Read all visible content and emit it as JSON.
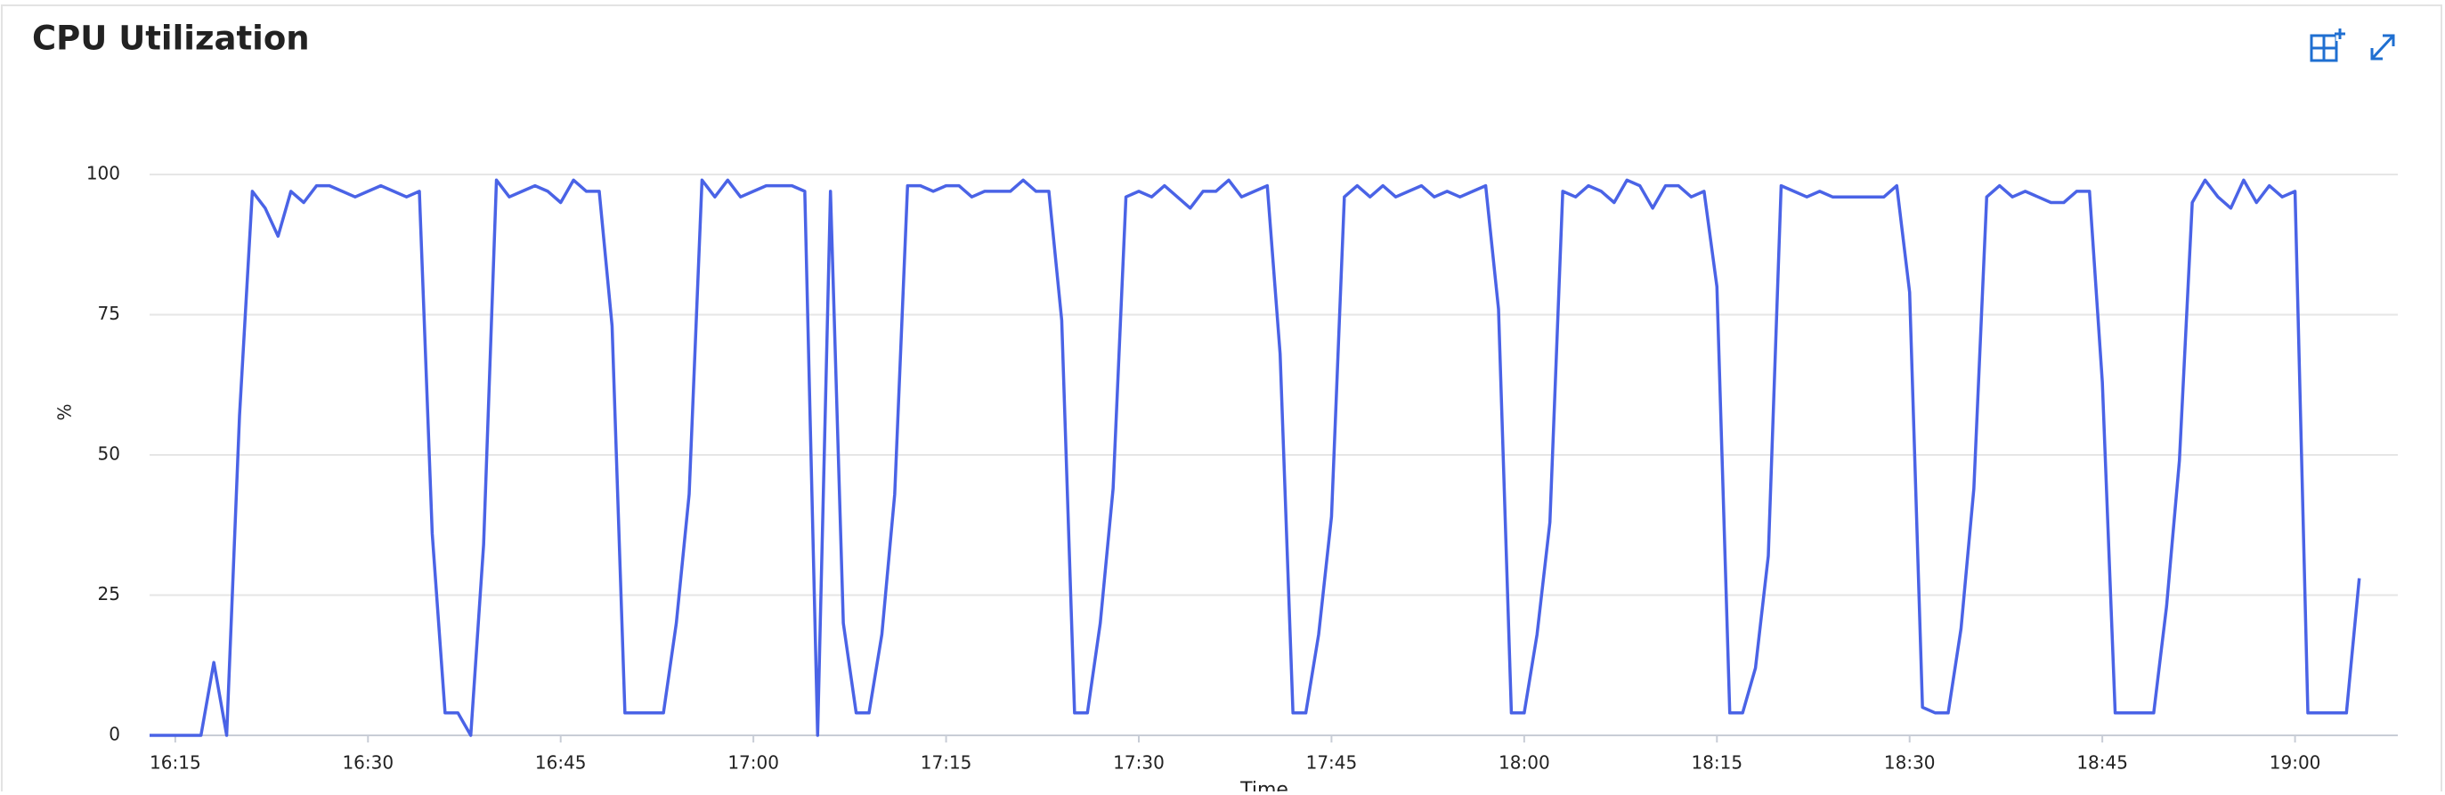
{
  "chart_data": {
    "type": "line",
    "title": "CPU Utilization",
    "x_label": "Time",
    "y_label": "%",
    "x": [
      "16:13",
      "16:14",
      "16:15",
      "16:16",
      "16:17",
      "16:18",
      "16:19",
      "16:20",
      "16:21",
      "16:22",
      "16:23",
      "16:24",
      "16:25",
      "16:26",
      "16:27",
      "16:28",
      "16:29",
      "16:30",
      "16:31",
      "16:32",
      "16:33",
      "16:34",
      "16:35",
      "16:36",
      "16:37",
      "16:38",
      "16:39",
      "16:40",
      "16:41",
      "16:42",
      "16:43",
      "16:44",
      "16:45",
      "16:46",
      "16:47",
      "16:48",
      "16:49",
      "16:50",
      "16:51",
      "16:52",
      "16:53",
      "16:54",
      "16:55",
      "16:56",
      "16:57",
      "16:58",
      "16:59",
      "17:00",
      "17:01",
      "17:02",
      "17:03",
      "17:04",
      "17:05",
      "17:06",
      "17:07",
      "17:08",
      "17:09",
      "17:10",
      "17:11",
      "17:12",
      "17:13",
      "17:14",
      "17:15",
      "17:16",
      "17:17",
      "17:18",
      "17:19",
      "17:20",
      "17:21",
      "17:22",
      "17:23",
      "17:24",
      "17:25",
      "17:26",
      "17:27",
      "17:28",
      "17:29",
      "17:30",
      "17:31",
      "17:32",
      "17:33",
      "17:34",
      "17:35",
      "17:36",
      "17:37",
      "17:38",
      "17:39",
      "17:40",
      "17:41",
      "17:42",
      "17:43",
      "17:44",
      "17:45",
      "17:46",
      "17:47",
      "17:48",
      "17:49",
      "17:50",
      "17:51",
      "17:52",
      "17:53",
      "17:54",
      "17:55",
      "17:56",
      "17:57",
      "17:58",
      "17:59",
      "18:00",
      "18:01",
      "18:02",
      "18:03",
      "18:04",
      "18:05",
      "18:06",
      "18:07",
      "18:08",
      "18:09",
      "18:10",
      "18:11",
      "18:12",
      "18:13",
      "18:14",
      "18:15",
      "18:16",
      "18:17",
      "18:18",
      "18:19",
      "18:20",
      "18:21",
      "18:22",
      "18:23",
      "18:24",
      "18:25",
      "18:26",
      "18:27",
      "18:28",
      "18:29",
      "18:30",
      "18:31",
      "18:32",
      "18:33",
      "18:34",
      "18:35",
      "18:36",
      "18:37",
      "18:38",
      "18:39",
      "18:40",
      "18:41",
      "18:42",
      "18:43",
      "18:44",
      "18:45",
      "18:46",
      "18:47",
      "18:48",
      "18:49",
      "18:50",
      "18:51",
      "18:52",
      "18:53",
      "18:54",
      "18:55",
      "18:56",
      "18:57",
      "18:58",
      "18:59",
      "19:00",
      "19:01",
      "19:02",
      "19:03",
      "19:04",
      "19:05"
    ],
    "series": [
      {
        "name": "CPU",
        "color": "#4a63e6",
        "values": [
          0,
          0,
          0,
          0,
          0,
          13,
          0,
          57,
          97,
          94,
          89,
          97,
          95,
          98,
          98,
          97,
          96,
          97,
          98,
          97,
          96,
          97,
          36,
          4,
          4,
          0,
          34,
          99,
          96,
          97,
          98,
          97,
          95,
          99,
          97,
          97,
          73,
          4,
          4,
          4,
          4,
          20,
          43,
          99,
          96,
          99,
          96,
          97,
          98,
          98,
          98,
          97,
          0,
          97,
          20,
          4,
          4,
          18,
          43,
          98,
          98,
          97,
          98,
          98,
          96,
          97,
          97,
          97,
          99,
          97,
          97,
          74,
          4,
          4,
          20,
          44,
          96,
          97,
          96,
          98,
          96,
          94,
          97,
          97,
          99,
          96,
          97,
          98,
          68,
          4,
          4,
          18,
          39,
          96,
          98,
          96,
          98,
          96,
          97,
          98,
          96,
          97,
          96,
          97,
          98,
          76,
          4,
          4,
          18,
          38,
          97,
          96,
          98,
          97,
          95,
          99,
          98,
          94,
          98,
          98,
          96,
          97,
          80,
          4,
          4,
          12,
          32,
          98,
          97,
          96,
          97,
          96,
          96,
          96,
          96,
          96,
          98,
          79,
          5,
          4,
          4,
          19,
          44,
          96,
          98,
          96,
          97,
          96,
          95,
          95,
          97,
          97,
          63,
          4,
          4,
          4,
          4,
          23,
          49,
          95,
          99,
          96,
          94,
          99,
          95,
          98,
          96,
          97,
          4,
          4,
          4,
          4,
          28
        ]
      }
    ],
    "xlim": [
      "16:13",
      "19:08"
    ],
    "xticks": [
      "16:15",
      "16:30",
      "16:45",
      "17:00",
      "17:15",
      "17:30",
      "17:45",
      "18:00",
      "18:15",
      "18:30",
      "18:45",
      "19:00"
    ],
    "ylim": [
      0,
      100
    ],
    "yticks": [
      0,
      25,
      50,
      75,
      100
    ],
    "grid": true
  }
}
